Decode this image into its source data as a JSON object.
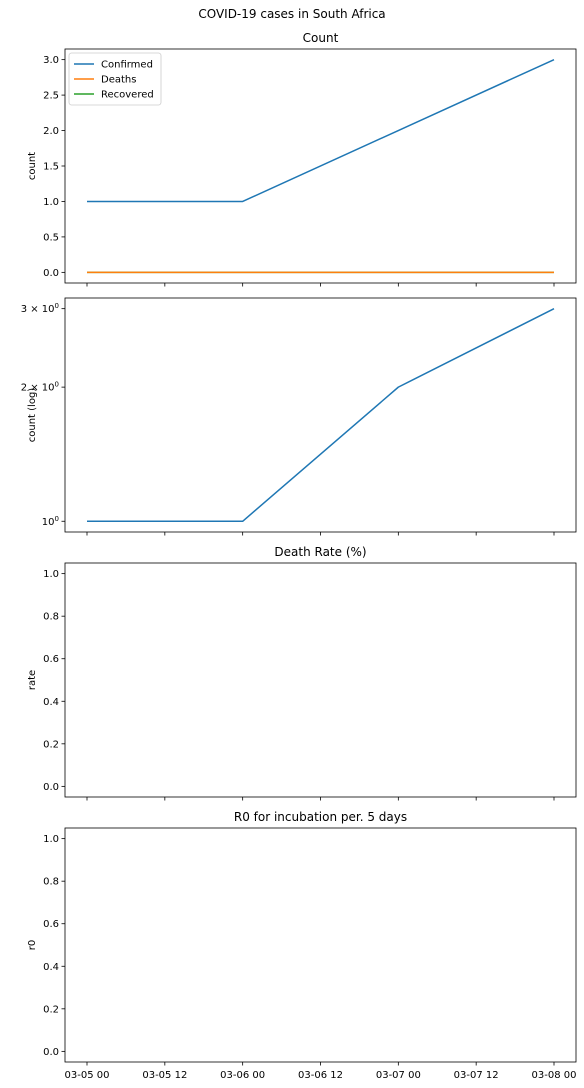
{
  "figure": {
    "title": "COVID-19 cases in South Africa"
  },
  "x_ticks": [
    "03-05 00",
    "03-05 12",
    "03-06 00",
    "03-06 12",
    "03-07 00",
    "03-07 12",
    "03-08 00"
  ],
  "chart_data": [
    {
      "type": "line",
      "title": "Count",
      "ylabel": "count",
      "x": [
        "03-05 00",
        "03-06 00",
        "03-07 00",
        "03-08 00"
      ],
      "ylim": [
        -0.15,
        3.15
      ],
      "yticks": [
        0.0,
        0.5,
        1.0,
        1.5,
        2.0,
        2.5,
        3.0
      ],
      "ytick_labels": [
        "0.0",
        "0.5",
        "1.0",
        "1.5",
        "2.0",
        "2.5",
        "3.0"
      ],
      "legend": "top-left",
      "series": [
        {
          "name": "Confirmed",
          "color": "#1f77b4",
          "values": [
            1,
            1,
            2,
            3
          ]
        },
        {
          "name": "Deaths",
          "color": "#ff7f0e",
          "values": [
            0,
            0,
            0,
            0
          ]
        },
        {
          "name": "Recovered",
          "color": "#2ca02c",
          "values": [
            0,
            0,
            0,
            0
          ]
        }
      ]
    },
    {
      "type": "line",
      "title": "",
      "ylabel": "count (log)",
      "yscale": "log",
      "x": [
        "03-05 00",
        "03-06 00",
        "03-07 00",
        "03-08 00"
      ],
      "ylim": [
        0.946,
        3.17
      ],
      "yticks": [
        1,
        2,
        3
      ],
      "ytick_labels": [
        {
          "base": "10",
          "exp": "0",
          "mult": ""
        },
        {
          "base": "10",
          "exp": "0",
          "mult": "2 × "
        },
        {
          "base": "10",
          "exp": "0",
          "mult": "3 × "
        }
      ],
      "series": [
        {
          "color": "#1f77b4",
          "values": [
            1,
            1,
            2,
            3
          ]
        }
      ]
    },
    {
      "type": "line",
      "title": "Death Rate (%)",
      "ylabel": "rate",
      "ylim": [
        -0.05,
        1.05
      ],
      "yticks": [
        0.0,
        0.2,
        0.4,
        0.6,
        0.8,
        1.0
      ],
      "ytick_labels": [
        "0.0",
        "0.2",
        "0.4",
        "0.6",
        "0.8",
        "1.0"
      ],
      "series": []
    },
    {
      "type": "line",
      "title": "R0 for incubation per. 5 days",
      "ylabel": "r0",
      "ylim": [
        -0.05,
        1.05
      ],
      "yticks": [
        0.0,
        0.2,
        0.4,
        0.6,
        0.8,
        1.0
      ],
      "ytick_labels": [
        "0.0",
        "0.2",
        "0.4",
        "0.6",
        "0.8",
        "1.0"
      ],
      "series": []
    }
  ]
}
